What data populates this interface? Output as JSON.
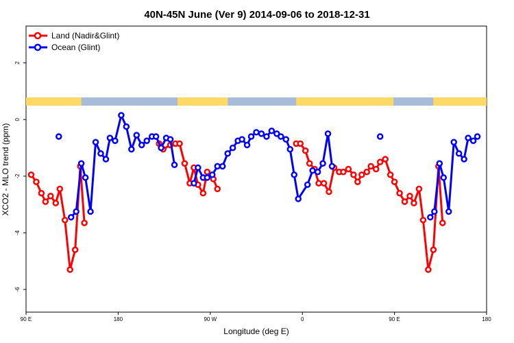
{
  "chart_data": {
    "type": "line",
    "title": "40N-45N June (Ver 9)   2014-09-06 to 2018-12-31",
    "xlabel": "Longitude (deg E)",
    "ylabel": "XCO2 - MLO trend (ppm)",
    "x_range_label": [
      "90 E",
      "180",
      "90 W",
      "0",
      "90 E",
      "180"
    ],
    "x_ticks_position_deg_from_start": [
      0,
      90,
      180,
      270,
      360,
      450
    ],
    "ylim": [
      -6.8,
      3.3
    ],
    "y_ticks": [
      -6,
      -4,
      -2,
      0,
      2
    ],
    "y_tick_labels": [
      "-6",
      "-4",
      "-2",
      "0",
      "2"
    ],
    "grid": false,
    "legend_position": "top-left",
    "series": [
      {
        "name": "Land (Nadir&Glint)",
        "color": "#ff0000",
        "points": [
          [
            5,
            -1.95
          ],
          [
            10,
            -2.2
          ],
          [
            15,
            -2.6
          ],
          [
            19,
            -2.9
          ],
          [
            24,
            -2.7
          ],
          [
            29,
            -2.95
          ],
          [
            33,
            -2.45
          ],
          [
            38,
            -3.55
          ],
          [
            43,
            -5.3
          ],
          [
            48,
            -4.6
          ],
          [
            53,
            -1.65
          ],
          [
            57,
            -3.65
          ],
          [
            130,
            -0.85
          ],
          [
            134,
            -1.05
          ],
          [
            141,
            -0.9
          ],
          [
            146,
            -0.85
          ],
          [
            150,
            -0.85
          ],
          [
            155,
            -1.55
          ],
          [
            160,
            -2.25
          ],
          [
            164,
            -1.7
          ],
          [
            168,
            -2.3
          ],
          [
            173,
            -2.6
          ],
          [
            177,
            -1.85
          ],
          [
            183,
            -2.1
          ],
          [
            187,
            -2.45
          ],
          [
            264,
            -0.85
          ],
          [
            268,
            -0.85
          ],
          [
            273,
            -1.1
          ],
          [
            277,
            -1.55
          ],
          [
            282,
            -1.75
          ],
          [
            286,
            -2.25
          ],
          [
            291,
            -2.25
          ],
          [
            296,
            -2.55
          ],
          [
            301,
            -1.7
          ],
          [
            306,
            -1.85
          ],
          [
            310,
            -1.85
          ],
          [
            315,
            -1.75
          ],
          [
            320,
            -1.95
          ],
          [
            324,
            -2.2
          ],
          [
            328,
            -1.95
          ],
          [
            333,
            -1.85
          ],
          [
            337,
            -1.65
          ],
          [
            342,
            -1.75
          ],
          [
            346,
            -1.5
          ],
          [
            351,
            -1.4
          ],
          [
            356,
            -1.95
          ],
          [
            360,
            -2.2
          ],
          [
            365,
            -2.6
          ],
          [
            370,
            -2.9
          ],
          [
            375,
            -2.7
          ],
          [
            379,
            -2.95
          ],
          [
            384,
            -2.45
          ],
          [
            388,
            -3.55
          ],
          [
            393,
            -5.3
          ],
          [
            398,
            -4.6
          ],
          [
            403,
            -1.65
          ],
          [
            407,
            -3.65
          ]
        ]
      },
      {
        "name": "Ocean (Glint)",
        "color": "#0000ff",
        "points": [
          [
            32,
            -0.6
          ],
          [
            44,
            -3.45
          ],
          [
            49,
            -3.25
          ],
          [
            54,
            -1.55
          ],
          [
            58,
            -2.05
          ],
          [
            63,
            -3.25
          ],
          [
            68,
            -0.8
          ],
          [
            73,
            -1.2
          ],
          [
            78,
            -1.4
          ],
          [
            82,
            -0.65
          ],
          [
            87,
            -0.75
          ],
          [
            93,
            0.15
          ],
          [
            98,
            -0.25
          ],
          [
            103,
            -1.05
          ],
          [
            108,
            -0.55
          ],
          [
            113,
            -0.9
          ],
          [
            118,
            -0.75
          ],
          [
            123,
            -0.6
          ],
          [
            127,
            -0.6
          ],
          [
            132,
            -1.0
          ],
          [
            137,
            -0.65
          ],
          [
            141,
            -0.7
          ],
          [
            145,
            -1.6
          ],
          [
            164,
            -2.25
          ],
          [
            168,
            -1.7
          ],
          [
            173,
            -2.05
          ],
          [
            177,
            -2.05
          ],
          [
            182,
            -1.95
          ],
          [
            187,
            -1.65
          ],
          [
            192,
            -1.65
          ],
          [
            197,
            -1.2
          ],
          [
            202,
            -1.0
          ],
          [
            207,
            -0.75
          ],
          [
            211,
            -0.7
          ],
          [
            216,
            -0.9
          ],
          [
            220,
            -0.6
          ],
          [
            225,
            -0.45
          ],
          [
            230,
            -0.5
          ],
          [
            235,
            -0.6
          ],
          [
            240,
            -0.4
          ],
          [
            245,
            -0.5
          ],
          [
            249,
            -0.6
          ],
          [
            254,
            -0.7
          ],
          [
            258,
            -1.05
          ],
          [
            262,
            -1.95
          ],
          [
            266,
            -2.8
          ],
          [
            275,
            -2.3
          ],
          [
            280,
            -1.8
          ],
          [
            285,
            -1.85
          ],
          [
            290,
            -1.55
          ],
          [
            295,
            -0.5
          ],
          [
            299,
            -1.65
          ],
          [
            346,
            -0.6
          ],
          [
            395,
            -3.45
          ],
          [
            399,
            -3.25
          ],
          [
            404,
            -1.55
          ],
          [
            408,
            -2.05
          ],
          [
            413,
            -3.25
          ],
          [
            418,
            -0.8
          ],
          [
            423,
            -1.2
          ],
          [
            428,
            -1.4
          ],
          [
            432,
            -0.65
          ],
          [
            437,
            -0.75
          ],
          [
            441,
            -0.6
          ]
        ]
      }
    ]
  },
  "legend": {
    "land": "Land (Nadir&Glint)",
    "ocean": "Ocean (Glint)"
  },
  "landmask_colors": {
    "land": "#ffd966",
    "ocean": "#a6bcd9"
  }
}
